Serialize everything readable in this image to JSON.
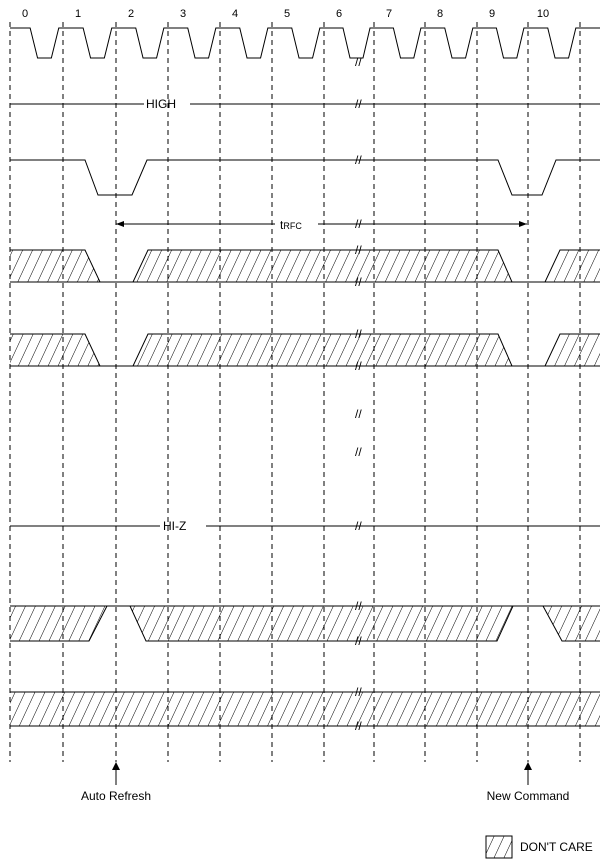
{
  "cycles": [
    "0",
    "1",
    "2",
    "3",
    "4",
    "5",
    "6",
    "7",
    "8",
    "9",
    "10"
  ],
  "labels": {
    "high": "HIGH",
    "hiz": "HI-Z",
    "trfc_t": "t",
    "trfc_sub": "RFC",
    "auto_refresh": "Auto Refresh",
    "new_command": "New Command",
    "dont_care": "DON'T CARE",
    "break_mark": "//"
  }
}
